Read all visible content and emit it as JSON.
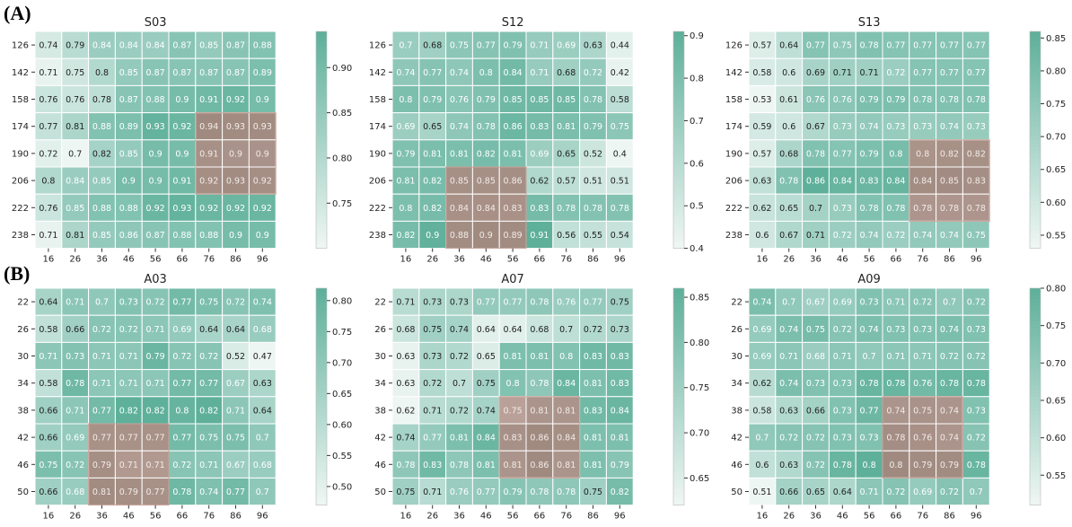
{
  "panel_labels": [
    "(A)",
    "(B)"
  ],
  "colors": {
    "low": "#eef6f3",
    "high": "#5eb09a",
    "highlight": "#a08a80"
  },
  "chart_data": [
    {
      "type": "heatmap",
      "title": "S03",
      "x_ticks": [
        "16",
        "26",
        "36",
        "46",
        "56",
        "66",
        "76",
        "86",
        "96"
      ],
      "y_ticks": [
        "126",
        "142",
        "158",
        "174",
        "190",
        "206",
        "222",
        "238"
      ],
      "values": [
        [
          0.74,
          0.79,
          0.84,
          0.84,
          0.84,
          0.87,
          0.85,
          0.87,
          0.88
        ],
        [
          0.71,
          0.75,
          0.8,
          0.85,
          0.87,
          0.87,
          0.87,
          0.87,
          0.89
        ],
        [
          0.76,
          0.76,
          0.78,
          0.87,
          0.88,
          0.9,
          0.91,
          0.92,
          0.9
        ],
        [
          0.77,
          0.81,
          0.88,
          0.89,
          0.93,
          0.92,
          0.94,
          0.93,
          0.93
        ],
        [
          0.72,
          0.7,
          0.82,
          0.85,
          0.9,
          0.9,
          0.91,
          0.9,
          0.9
        ],
        [
          0.8,
          0.84,
          0.85,
          0.9,
          0.9,
          0.91,
          0.92,
          0.93,
          0.92
        ],
        [
          0.76,
          0.85,
          0.88,
          0.88,
          0.92,
          0.93,
          0.92,
          0.92,
          0.92
        ],
        [
          0.71,
          0.81,
          0.85,
          0.86,
          0.87,
          0.88,
          0.88,
          0.9,
          0.9
        ]
      ],
      "vmin": 0.7,
      "vmax": 0.94,
      "colorbar_ticks": [
        "0.75",
        "0.80",
        "0.85",
        "0.90"
      ],
      "colorbar_values": [
        0.75,
        0.8,
        0.85,
        0.9
      ],
      "highlight": {
        "rows": [
          3,
          5
        ],
        "cols": [
          6,
          8
        ]
      }
    },
    {
      "type": "heatmap",
      "title": "S12",
      "x_ticks": [
        "16",
        "26",
        "36",
        "46",
        "56",
        "66",
        "76",
        "86",
        "96"
      ],
      "y_ticks": [
        "126",
        "142",
        "158",
        "174",
        "190",
        "206",
        "222",
        "238"
      ],
      "values": [
        [
          0.7,
          0.68,
          0.75,
          0.77,
          0.79,
          0.71,
          0.69,
          0.63,
          0.44
        ],
        [
          0.74,
          0.77,
          0.74,
          0.8,
          0.84,
          0.71,
          0.68,
          0.72,
          0.42
        ],
        [
          0.8,
          0.79,
          0.76,
          0.79,
          0.85,
          0.85,
          0.85,
          0.78,
          0.58
        ],
        [
          0.69,
          0.65,
          0.74,
          0.78,
          0.86,
          0.83,
          0.81,
          0.79,
          0.75
        ],
        [
          0.79,
          0.81,
          0.81,
          0.82,
          0.81,
          0.69,
          0.65,
          0.52,
          0.4
        ],
        [
          0.81,
          0.82,
          0.85,
          0.85,
          0.86,
          0.62,
          0.57,
          0.51,
          0.51
        ],
        [
          0.8,
          0.82,
          0.84,
          0.84,
          0.83,
          0.83,
          0.78,
          0.78,
          0.78
        ],
        [
          0.82,
          0.9,
          0.88,
          0.9,
          0.89,
          0.91,
          0.56,
          0.55,
          0.54
        ]
      ],
      "vmin": 0.4,
      "vmax": 0.91,
      "colorbar_ticks": [
        "0.4",
        "0.5",
        "0.6",
        "0.7",
        "0.8",
        "0.9"
      ],
      "colorbar_values": [
        0.4,
        0.5,
        0.6,
        0.7,
        0.8,
        0.9
      ],
      "highlight": {
        "rows": [
          5,
          7
        ],
        "cols": [
          2,
          4
        ]
      }
    },
    {
      "type": "heatmap",
      "title": "S13",
      "x_ticks": [
        "16",
        "26",
        "36",
        "46",
        "56",
        "66",
        "76",
        "86",
        "96"
      ],
      "y_ticks": [
        "126",
        "142",
        "158",
        "174",
        "190",
        "206",
        "222",
        "238"
      ],
      "values": [
        [
          0.57,
          0.64,
          0.77,
          0.75,
          0.78,
          0.77,
          0.77,
          0.77,
          0.77
        ],
        [
          0.58,
          0.6,
          0.69,
          0.71,
          0.71,
          0.72,
          0.77,
          0.77,
          0.77
        ],
        [
          0.53,
          0.61,
          0.76,
          0.76,
          0.79,
          0.79,
          0.78,
          0.78,
          0.78
        ],
        [
          0.59,
          0.6,
          0.67,
          0.73,
          0.74,
          0.73,
          0.73,
          0.74,
          0.73
        ],
        [
          0.57,
          0.68,
          0.78,
          0.77,
          0.79,
          0.8,
          0.8,
          0.82,
          0.82
        ],
        [
          0.63,
          0.78,
          0.86,
          0.84,
          0.83,
          0.84,
          0.84,
          0.85,
          0.83
        ],
        [
          0.62,
          0.65,
          0.7,
          0.73,
          0.78,
          0.78,
          0.78,
          0.78,
          0.78
        ],
        [
          0.6,
          0.67,
          0.71,
          0.72,
          0.74,
          0.72,
          0.74,
          0.74,
          0.75
        ]
      ],
      "vmin": 0.53,
      "vmax": 0.86,
      "colorbar_ticks": [
        "0.55",
        "0.60",
        "0.65",
        "0.70",
        "0.75",
        "0.80",
        "0.85"
      ],
      "colorbar_values": [
        0.55,
        0.6,
        0.65,
        0.7,
        0.75,
        0.8,
        0.85
      ],
      "highlight": {
        "rows": [
          4,
          6
        ],
        "cols": [
          6,
          8
        ]
      }
    },
    {
      "type": "heatmap",
      "title": "A03",
      "x_ticks": [
        "16",
        "26",
        "36",
        "46",
        "56",
        "66",
        "76",
        "86",
        "96"
      ],
      "y_ticks": [
        "22",
        "26",
        "30",
        "34",
        "38",
        "42",
        "46",
        "50"
      ],
      "values": [
        [
          0.64,
          0.71,
          0.7,
          0.73,
          0.72,
          0.77,
          0.75,
          0.72,
          0.74
        ],
        [
          0.58,
          0.66,
          0.72,
          0.72,
          0.71,
          0.69,
          0.64,
          0.64,
          0.68
        ],
        [
          0.71,
          0.73,
          0.71,
          0.71,
          0.79,
          0.72,
          0.72,
          0.52,
          0.47
        ],
        [
          0.58,
          0.78,
          0.71,
          0.71,
          0.71,
          0.77,
          0.77,
          0.67,
          0.63
        ],
        [
          0.66,
          0.71,
          0.77,
          0.82,
          0.82,
          0.8,
          0.82,
          0.71,
          0.64
        ],
        [
          0.66,
          0.69,
          0.77,
          0.77,
          0.77,
          0.77,
          0.75,
          0.75,
          0.7
        ],
        [
          0.75,
          0.72,
          0.79,
          0.71,
          0.71,
          0.72,
          0.71,
          0.67,
          0.68
        ],
        [
          0.66,
          0.68,
          0.81,
          0.79,
          0.77,
          0.78,
          0.74,
          0.77,
          0.7
        ]
      ],
      "vmin": 0.47,
      "vmax": 0.82,
      "colorbar_ticks": [
        "0.50",
        "0.55",
        "0.60",
        "0.65",
        "0.70",
        "0.75",
        "0.80"
      ],
      "colorbar_values": [
        0.5,
        0.55,
        0.6,
        0.65,
        0.7,
        0.75,
        0.8
      ],
      "highlight": {
        "rows": [
          5,
          7
        ],
        "cols": [
          2,
          4
        ]
      }
    },
    {
      "type": "heatmap",
      "title": "A07",
      "x_ticks": [
        "16",
        "26",
        "36",
        "46",
        "56",
        "66",
        "76",
        "86",
        "96"
      ],
      "y_ticks": [
        "22",
        "26",
        "30",
        "34",
        "38",
        "42",
        "46",
        "50"
      ],
      "values": [
        [
          0.71,
          0.73,
          0.73,
          0.77,
          0.77,
          0.78,
          0.76,
          0.77,
          0.75
        ],
        [
          0.68,
          0.75,
          0.74,
          0.64,
          0.64,
          0.68,
          0.7,
          0.72,
          0.73
        ],
        [
          0.63,
          0.73,
          0.72,
          0.65,
          0.81,
          0.81,
          0.8,
          0.83,
          0.83
        ],
        [
          0.63,
          0.72,
          0.7,
          0.75,
          0.8,
          0.78,
          0.84,
          0.81,
          0.83
        ],
        [
          0.62,
          0.71,
          0.72,
          0.74,
          0.75,
          0.81,
          0.81,
          0.83,
          0.84
        ],
        [
          0.74,
          0.77,
          0.81,
          0.84,
          0.83,
          0.86,
          0.84,
          0.81,
          0.81
        ],
        [
          0.78,
          0.83,
          0.78,
          0.81,
          0.81,
          0.86,
          0.81,
          0.81,
          0.79
        ],
        [
          0.75,
          0.71,
          0.76,
          0.77,
          0.79,
          0.78,
          0.78,
          0.75,
          0.82
        ]
      ],
      "vmin": 0.62,
      "vmax": 0.86,
      "colorbar_ticks": [
        "0.65",
        "0.70",
        "0.75",
        "0.80",
        "0.85"
      ],
      "colorbar_values": [
        0.65,
        0.7,
        0.75,
        0.8,
        0.85
      ],
      "highlight": {
        "rows": [
          4,
          6
        ],
        "cols": [
          4,
          6
        ]
      }
    },
    {
      "type": "heatmap",
      "title": "A09",
      "x_ticks": [
        "16",
        "26",
        "36",
        "46",
        "56",
        "66",
        "76",
        "86",
        "96"
      ],
      "y_ticks": [
        "22",
        "26",
        "30",
        "34",
        "38",
        "42",
        "46",
        "50"
      ],
      "values": [
        [
          0.74,
          0.7,
          0.67,
          0.69,
          0.73,
          0.71,
          0.72,
          0.7,
          0.72
        ],
        [
          0.69,
          0.74,
          0.75,
          0.72,
          0.74,
          0.73,
          0.73,
          0.74,
          0.73
        ],
        [
          0.69,
          0.71,
          0.68,
          0.71,
          0.7,
          0.71,
          0.71,
          0.72,
          0.72
        ],
        [
          0.62,
          0.74,
          0.73,
          0.73,
          0.78,
          0.78,
          0.76,
          0.78,
          0.78
        ],
        [
          0.58,
          0.63,
          0.66,
          0.73,
          0.77,
          0.74,
          0.75,
          0.74,
          0.73
        ],
        [
          0.7,
          0.72,
          0.72,
          0.73,
          0.73,
          0.78,
          0.76,
          0.74,
          0.72
        ],
        [
          0.6,
          0.63,
          0.72,
          0.78,
          0.8,
          0.8,
          0.79,
          0.79,
          0.78
        ],
        [
          0.51,
          0.66,
          0.65,
          0.64,
          0.71,
          0.72,
          0.69,
          0.72,
          0.7
        ]
      ],
      "vmin": 0.51,
      "vmax": 0.8,
      "colorbar_ticks": [
        "0.55",
        "0.60",
        "0.65",
        "0.70",
        "0.75",
        "0.80"
      ],
      "colorbar_values": [
        0.55,
        0.6,
        0.65,
        0.7,
        0.75,
        0.8
      ],
      "highlight": {
        "rows": [
          4,
          6
        ],
        "cols": [
          5,
          7
        ]
      }
    }
  ]
}
